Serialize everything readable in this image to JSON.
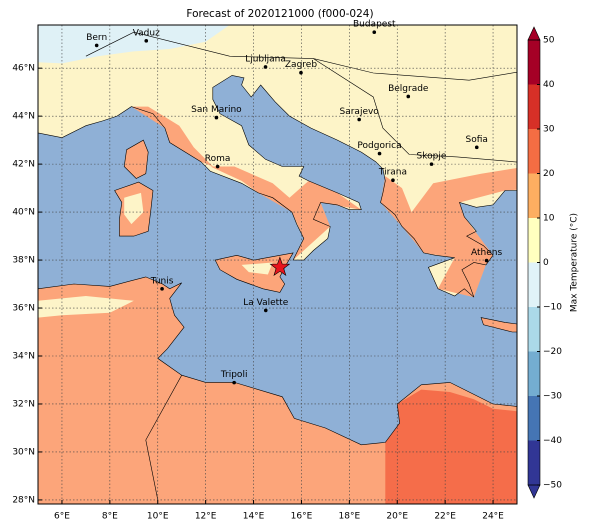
{
  "title": "Forecast of 2020121000 (f000-024)",
  "map": {
    "xlim": [
      5,
      25
    ],
    "ylim": [
      27.83,
      47.8
    ],
    "grid": true,
    "xticks": [
      {
        "value": 6,
        "label": "6°E"
      },
      {
        "value": 8,
        "label": "8°E"
      },
      {
        "value": 10,
        "label": "10°E"
      },
      {
        "value": 12,
        "label": "12°E"
      },
      {
        "value": 14,
        "label": "14°E"
      },
      {
        "value": 16,
        "label": "16°E"
      },
      {
        "value": 18,
        "label": "18°E"
      },
      {
        "value": 20,
        "label": "20°E"
      },
      {
        "value": 22,
        "label": "22°E"
      },
      {
        "value": 24,
        "label": "24°E"
      }
    ],
    "yticks": [
      {
        "value": 28,
        "label": "28°N"
      },
      {
        "value": 30,
        "label": "30°N"
      },
      {
        "value": 32,
        "label": "32°N"
      },
      {
        "value": 34,
        "label": "34°N"
      },
      {
        "value": 36,
        "label": "36°N"
      },
      {
        "value": 38,
        "label": "38°N"
      },
      {
        "value": 40,
        "label": "40°N"
      },
      {
        "value": 42,
        "label": "42°N"
      },
      {
        "value": 44,
        "label": "44°N"
      },
      {
        "value": 46,
        "label": "46°N"
      }
    ],
    "cities": [
      {
        "name": "Bern",
        "lon": 7.45,
        "lat": 46.95
      },
      {
        "name": "Vaduz",
        "lon": 9.52,
        "lat": 47.14
      },
      {
        "name": "Budapest",
        "lon": 19.04,
        "lat": 47.5
      },
      {
        "name": "Ljubljana",
        "lon": 14.5,
        "lat": 46.05
      },
      {
        "name": "Zagreb",
        "lon": 15.98,
        "lat": 45.81
      },
      {
        "name": "Belgrade",
        "lon": 20.46,
        "lat": 44.82
      },
      {
        "name": "San Marino",
        "lon": 12.45,
        "lat": 43.94
      },
      {
        "name": "Sarajevo",
        "lon": 18.41,
        "lat": 43.86
      },
      {
        "name": "Sofia",
        "lon": 23.32,
        "lat": 42.7
      },
      {
        "name": "Roma",
        "lon": 12.5,
        "lat": 41.9
      },
      {
        "name": "Podgorica",
        "lon": 19.26,
        "lat": 42.44
      },
      {
        "name": "Skopje",
        "lon": 21.43,
        "lat": 42.0
      },
      {
        "name": "Tirana",
        "lon": 19.82,
        "lat": 41.33
      },
      {
        "name": "Athens",
        "lon": 23.73,
        "lat": 37.98
      },
      {
        "name": "Tunis",
        "lon": 10.18,
        "lat": 36.8
      },
      {
        "name": "La Valette",
        "lon": 14.51,
        "lat": 35.9
      },
      {
        "name": "Tripoli",
        "lon": 13.19,
        "lat": 32.89
      }
    ]
  },
  "colorbar": {
    "label": "Max Temperature (°C)",
    "lim": [
      -50,
      50
    ],
    "ticks": [
      {
        "value": -50,
        "label": "−50"
      },
      {
        "value": -40,
        "label": "−40"
      },
      {
        "value": -30,
        "label": "−30"
      },
      {
        "value": -20,
        "label": "−20"
      },
      {
        "value": -10,
        "label": "−10"
      },
      0,
      10,
      20,
      30,
      40,
      50
    ],
    "colors": [
      "#313695",
      "#4575b4",
      "#74add1",
      "#abd9e9",
      "#e0f3f8",
      "#ffffbf",
      "#fdae61",
      "#f46d43",
      "#d73027",
      "#a50026"
    ]
  }
}
